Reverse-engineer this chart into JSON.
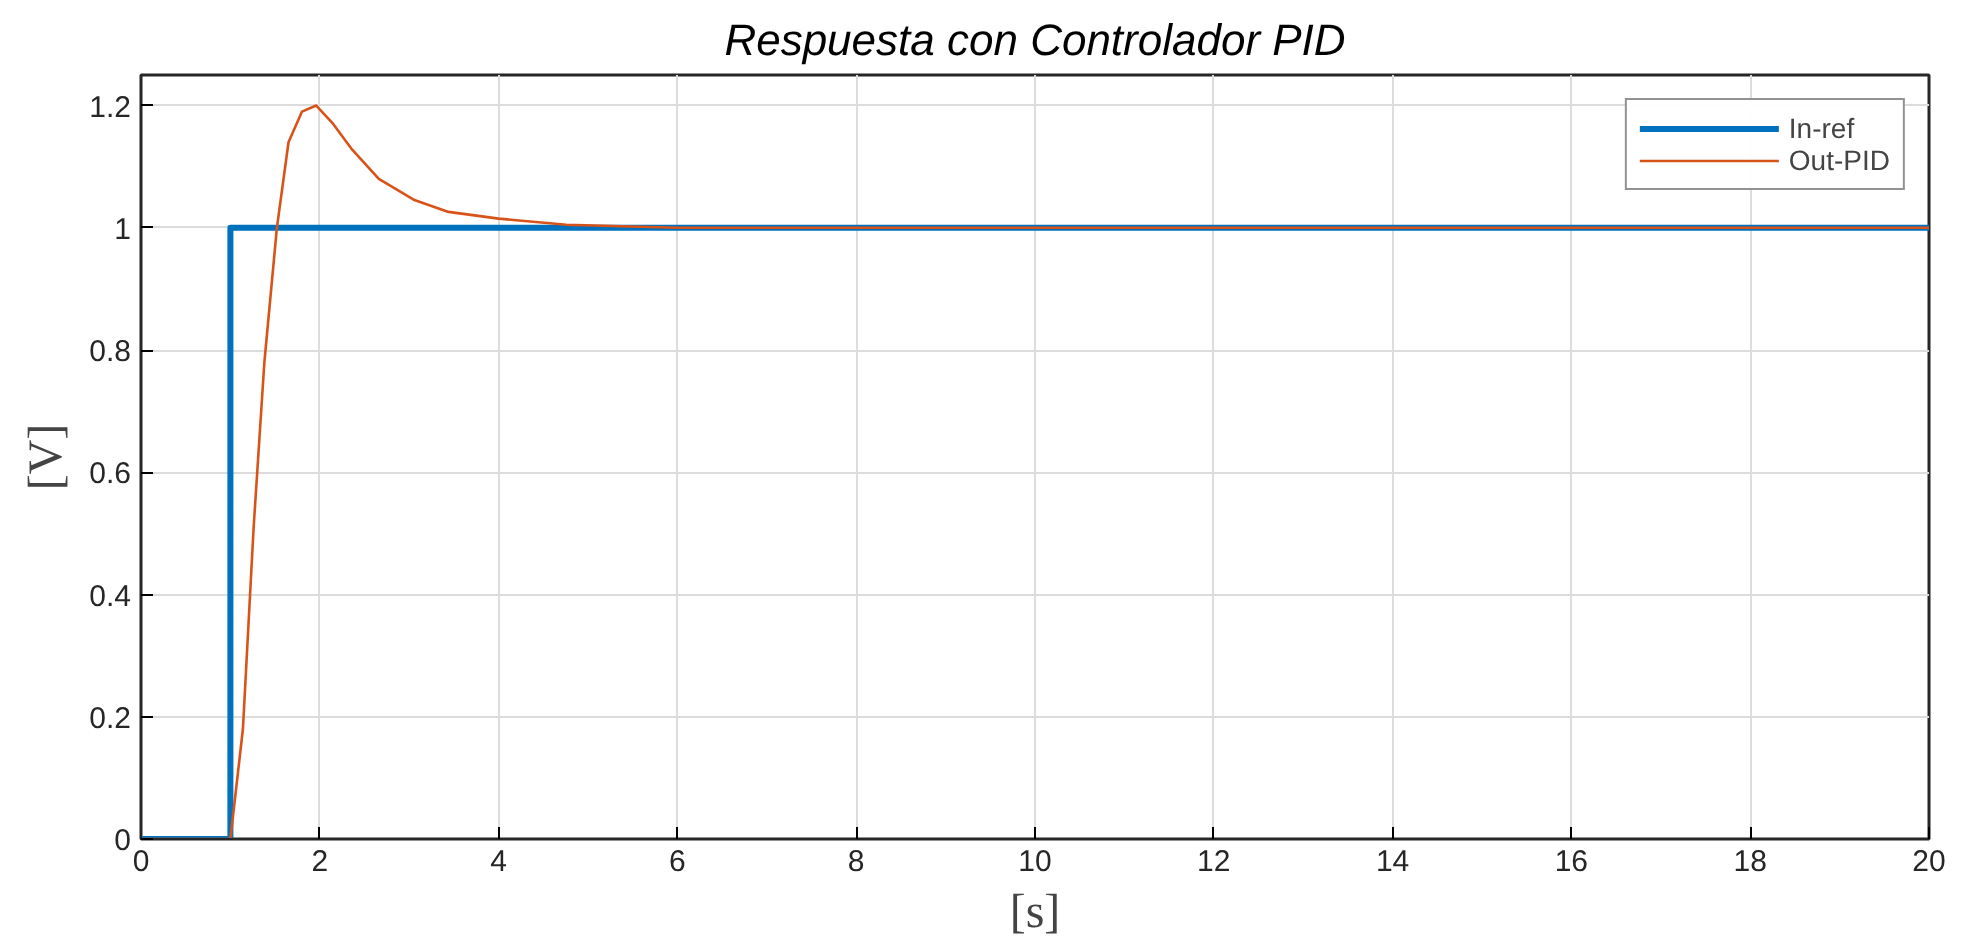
{
  "chart_data": {
    "type": "line",
    "title": "Respuesta con Controlador PID",
    "xlabel": "[s]",
    "ylabel": "[V]",
    "xlim": [
      0,
      20
    ],
    "ylim": [
      0,
      1.25
    ],
    "xticks": [
      0,
      2,
      4,
      6,
      8,
      10,
      12,
      14,
      16,
      18,
      20
    ],
    "yticks": [
      0,
      0.2,
      0.4,
      0.6,
      0.8,
      1,
      1.2
    ],
    "grid": true,
    "legend": "top right",
    "marker": "none",
    "line_style": "solid",
    "series": [
      {
        "name": "In-ref",
        "color": "#0072bd",
        "x": [
          0,
          1,
          1,
          20
        ],
        "values": [
          0,
          0,
          1,
          1
        ]
      },
      {
        "name": "Out-PID",
        "color": "#d95319",
        "x": [
          0,
          1,
          1.14,
          1.26,
          1.38,
          1.52,
          1.65,
          1.8,
          1.96,
          2.15,
          2.35,
          2.66,
          3.05,
          3.44,
          4,
          4.76,
          6,
          8,
          20
        ],
        "values": [
          0,
          0,
          0.18,
          0.51,
          0.78,
          1.0,
          1.14,
          1.19,
          1.2,
          1.17,
          1.13,
          1.08,
          1.046,
          1.026,
          1.015,
          1.005,
          1.0,
          1.0,
          1.0
        ]
      }
    ]
  }
}
